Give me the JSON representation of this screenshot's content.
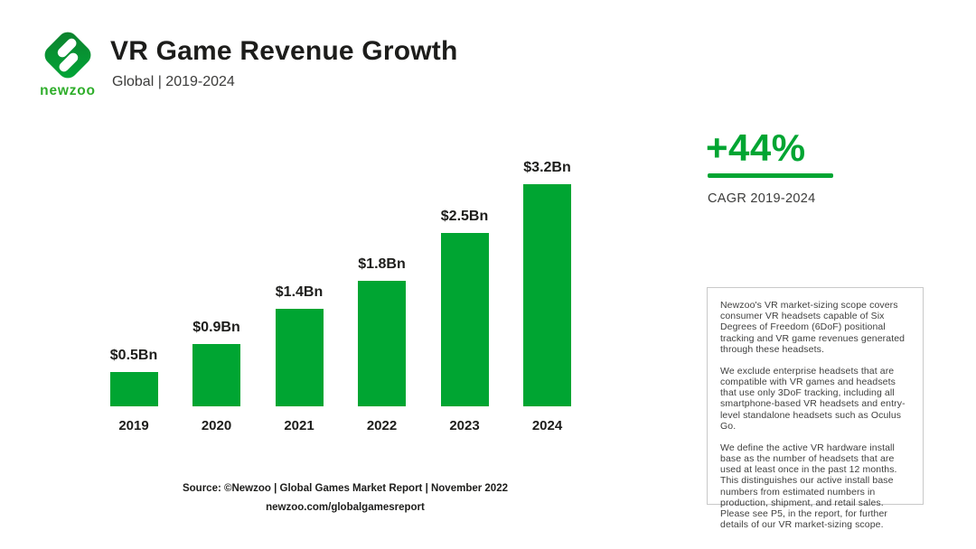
{
  "brand": {
    "wordmark": "newzoo"
  },
  "header": {
    "title": "VR Game Revenue Growth",
    "subtitle": "Global | 2019-2024"
  },
  "chart_data": {
    "type": "bar",
    "title": "VR Game Revenue Growth",
    "subtitle": "Global | 2019-2024",
    "categories": [
      "2019",
      "2020",
      "2021",
      "2022",
      "2023",
      "2024"
    ],
    "values": [
      0.5,
      0.9,
      1.4,
      1.8,
      2.5,
      3.2
    ],
    "value_labels": [
      "$0.5Bn",
      "$0.9Bn",
      "$1.4Bn",
      "$1.8Bn",
      "$2.5Bn",
      "$3.2Bn"
    ],
    "unit": "USD billions",
    "ylim": [
      0,
      3.2
    ],
    "grid": false,
    "axes_shown": false,
    "bar_color": "#00a532",
    "legend": "none"
  },
  "highlight": {
    "value": "+44%",
    "label": "CAGR 2019-2024"
  },
  "note_box": {
    "paragraphs": [
      "Newzoo's VR market-sizing scope covers consumer VR headsets capable of Six Degrees of Freedom (6DoF) positional tracking and VR game revenues generated through these headsets.",
      "We exclude enterprise headsets that are compatible with VR games and headsets that use only 3DoF tracking, including all smartphone-based VR headsets and entry-level standalone headsets such as Oculus Go.",
      "We define the active VR hardware install base as the number of headsets that are used at least once in the past 12 months. This distinguishes our active install base numbers from estimated numbers in production, shipment, and retail sales. Please see P5, in the report, for further details of our VR market-sizing scope."
    ]
  },
  "footer": {
    "source_line": "Source: ©Newzoo | Global Games Market Report | November 2022",
    "link_line": "newzoo.com/globalgamesreport"
  },
  "colors": {
    "green": "#00a532",
    "logo_dark_green": "#0e7e2d",
    "logo_light_green": "#00a838",
    "wordmark_green": "#2fae2b",
    "text_dark": "#1d1d1b",
    "text_gray": "#3f3f3e",
    "box_border": "#c9c9c9"
  }
}
